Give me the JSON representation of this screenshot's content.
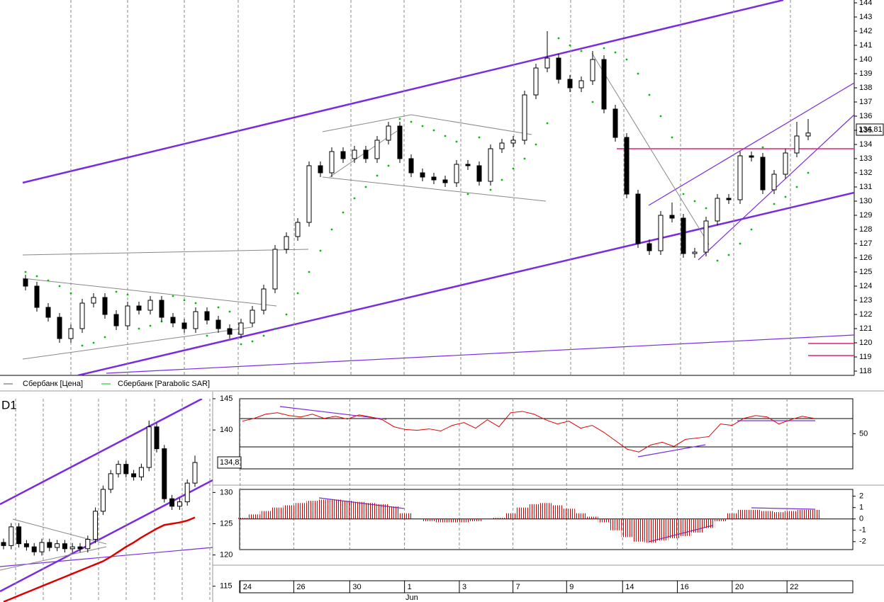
{
  "chart_data": [
    {
      "type": "candlestick",
      "series": [
        {
          "name": "Сбербанк [Цена]",
          "color": "#000000",
          "open": [
            124.5,
            124,
            122.5,
            121.8,
            120.3,
            121,
            122.8,
            123.2,
            122,
            121.2,
            122.6,
            122.3,
            123,
            121.8,
            121.4,
            121,
            122.2,
            121.6,
            121,
            120.6,
            121.4,
            122.3,
            123.8,
            126.6,
            127.5,
            128.5,
            132.5,
            132,
            133.5,
            133,
            133.6,
            133,
            134.3,
            135.3,
            133,
            132,
            131.7,
            131.5,
            131.3,
            132.6,
            132.5,
            131.4,
            133.7,
            134.1,
            134.3,
            137.5,
            139.4,
            140.1,
            138.6,
            138,
            138.5,
            140,
            136.5,
            134.5,
            130.5,
            127,
            126.5,
            129,
            128.8,
            126.3,
            126.4,
            128.6,
            130.2,
            130.1,
            133.2,
            133.1,
            130.8,
            131.9,
            133.4,
            134.6
          ],
          "high": [
            124.8,
            124.3,
            122.8,
            122.1,
            121.3,
            123.1,
            123.5,
            123.5,
            122.3,
            122.9,
            122.9,
            123.3,
            123.3,
            122.1,
            121.7,
            122.5,
            122.5,
            121.9,
            121.3,
            121.7,
            122.6,
            124.1,
            126.9,
            127.8,
            128.8,
            132.8,
            132.8,
            133.8,
            133.8,
            133.9,
            133.9,
            134.6,
            135.6,
            135.6,
            133.3,
            132.3,
            132,
            131.8,
            132.9,
            132.9,
            132.8,
            134,
            134.4,
            134.6,
            137.8,
            139.7,
            142,
            140.4,
            138.9,
            138.8,
            140.6,
            140.3,
            136.8,
            134.8,
            130.8,
            127.3,
            129.3,
            129.9,
            129.1,
            126.7,
            128.9,
            130.5,
            130.5,
            133.5,
            133.5,
            133.4,
            132.2,
            133.7,
            135.6,
            135.8
          ],
          "low": [
            123.7,
            122.2,
            121.5,
            120,
            120,
            120.7,
            122.5,
            121.7,
            120.9,
            120.9,
            122,
            122,
            121.5,
            121.1,
            120.7,
            120.7,
            121.3,
            120.7,
            120.3,
            120.3,
            121.1,
            122,
            123.5,
            126.3,
            127.2,
            128.2,
            131.7,
            131.7,
            132.7,
            132.7,
            132.7,
            132.7,
            134,
            132.7,
            131.7,
            131.4,
            131.2,
            131,
            131,
            132.2,
            131.1,
            131.1,
            133.4,
            133.8,
            134,
            137.2,
            139.1,
            138.3,
            137.7,
            137.7,
            138.2,
            136.2,
            134.2,
            130.2,
            126.7,
            126.2,
            126.2,
            128.5,
            126,
            126,
            126.1,
            128.3,
            129.8,
            129.8,
            132.8,
            130.5,
            130.5,
            131.6,
            133.1,
            134.3
          ],
          "close": [
            124,
            122.5,
            121.8,
            120.3,
            121,
            122.8,
            123.2,
            122,
            121.2,
            122.6,
            122.3,
            123,
            121.8,
            121.4,
            121,
            122.2,
            121.6,
            121,
            120.6,
            121.4,
            122.3,
            123.8,
            126.6,
            127.5,
            128.5,
            132.5,
            132,
            133.5,
            133,
            133.6,
            133,
            134.3,
            135.3,
            133,
            132,
            131.7,
            131.5,
            131.3,
            132.6,
            132.5,
            131.4,
            133.7,
            134.1,
            134.3,
            137.5,
            139.4,
            140.1,
            138.6,
            138,
            138.5,
            140,
            136.5,
            134.5,
            130.5,
            127,
            126.5,
            129,
            128.8,
            126.3,
            126.4,
            128.6,
            130.2,
            130.1,
            133.2,
            133.1,
            130.8,
            131.9,
            133.4,
            134.6,
            134.81
          ]
        },
        {
          "name": "Сбербанк [Parabolic SAR]",
          "color": "#00c000",
          "values": [
            125,
            124.7,
            124.4,
            124,
            123.5,
            119.8,
            120,
            120.4,
            123.6,
            123.4,
            121,
            121.2,
            121.5,
            123.3,
            123,
            122.8,
            120.5,
            122.5,
            122.2,
            119.9,
            120.1,
            120.5,
            121,
            122,
            123.5,
            125,
            126.5,
            128,
            129.2,
            130.2,
            131,
            131.8,
            132.5,
            135.8,
            135.6,
            135.3,
            135,
            134.6,
            134.2,
            130.5,
            134.5,
            130.8,
            131.5,
            132.3,
            133,
            134,
            135.5,
            141.5,
            141,
            140.6,
            137,
            140.8,
            140.5,
            140,
            139,
            137.5,
            136,
            134.5,
            130.5,
            130,
            129.5,
            125.8,
            126.2,
            127,
            128,
            133.8,
            129.8,
            130.3,
            131,
            132
          ]
        }
      ],
      "ylim": [
        117.7,
        144.2
      ],
      "yticks": [
        118,
        119,
        120,
        121,
        122,
        123,
        124,
        125,
        126,
        127,
        128,
        129,
        130,
        131,
        132,
        133,
        134,
        135,
        136,
        137,
        138,
        139,
        140,
        141,
        142,
        143,
        144
      ],
      "last_price_label": "134,81"
    },
    {
      "type": "candlestick",
      "title": "D1",
      "series": [
        {
          "color": "#000000",
          "open": [
            122,
            121.5,
            124.5,
            121.8,
            121.3,
            120.5,
            122,
            121.2,
            121.8,
            121,
            121.3,
            121,
            122.5,
            127,
            130.5,
            133,
            134.5,
            133,
            132.5,
            134,
            140.5,
            137,
            129,
            127.8,
            128.5,
            131.5
          ],
          "high": [
            122.6,
            125.1,
            125.1,
            122.4,
            121.9,
            122.6,
            122.6,
            122.4,
            122.4,
            121.9,
            121.9,
            123.1,
            127.6,
            131.1,
            133.6,
            135.1,
            135.1,
            133.6,
            134.6,
            141.5,
            141.1,
            137.6,
            129.6,
            129.1,
            132.1,
            135.9
          ],
          "low": [
            120.9,
            120.9,
            121.2,
            120.7,
            119.9,
            119.9,
            120.6,
            120.6,
            120.4,
            120.4,
            120.4,
            120.4,
            121.9,
            126.4,
            129.9,
            132.4,
            132.4,
            131.9,
            131.9,
            133.4,
            136.4,
            128.4,
            127.2,
            127.2,
            127.9,
            130.9
          ],
          "close": [
            121.5,
            124.5,
            121.8,
            121.3,
            120.5,
            122,
            121.2,
            121.8,
            121,
            121.3,
            121,
            122.5,
            127,
            130.5,
            133,
            134.5,
            133,
            132.5,
            134,
            140.5,
            137,
            129,
            127.8,
            128.5,
            131.5,
            134.8
          ]
        },
        {
          "color": "#e00000",
          "values": [
            112.5,
            113,
            113.5,
            114,
            114.5,
            115,
            115.5,
            116,
            116.5,
            117,
            117.5,
            118,
            118.5,
            119,
            119.7,
            120.5,
            121.3,
            122,
            122.8,
            123.5,
            124.2,
            124.8,
            125,
            125.2,
            125.5,
            126
          ]
        }
      ],
      "ylim": [
        112.7,
        145
      ],
      "yticks": [
        145,
        140,
        130,
        125,
        120,
        115
      ],
      "last_price_label": "134,8"
    },
    {
      "type": "line",
      "series": [
        {
          "color": "#e00000",
          "values": [
            68,
            72,
            78,
            80,
            76,
            74,
            78,
            72,
            75,
            71,
            77,
            74,
            70,
            60,
            56,
            55,
            57,
            54,
            62,
            66,
            58,
            70,
            60,
            80,
            82,
            78,
            70,
            64,
            68,
            58,
            62,
            52,
            40,
            28,
            24,
            34,
            38,
            32,
            42,
            44,
            46,
            64,
            62,
            72,
            76,
            74,
            64,
            70,
            75,
            72
          ]
        }
      ],
      "xlim": [
        0,
        49
      ],
      "ylim": [
        0,
        100
      ],
      "yticks": [
        50
      ]
    },
    {
      "type": "bar",
      "color": "#d00000",
      "values": [
        0.1,
        0.4,
        0.7,
        1,
        1.2,
        1.4,
        1.6,
        1.7,
        1.7,
        1.6,
        1.5,
        1.4,
        1.3,
        1.1,
        0.5,
        0,
        -0.2,
        -0.3,
        -0.3,
        -0.3,
        -0.2,
        0,
        0.1,
        0.5,
        1,
        1.3,
        1.4,
        1.2,
        0.9,
        0.5,
        0.2,
        -0.3,
        -1,
        -1.6,
        -2,
        -2.1,
        -1.9,
        -1.7,
        -1.5,
        -1.2,
        -0.8,
        -0.2,
        0.5,
        0.8,
        0.8,
        0.7,
        0.6,
        0.7,
        0.8,
        0.8
      ],
      "xlim": [
        0,
        49
      ],
      "ylim": [
        -2.7,
        2.6
      ],
      "yticks": [
        2,
        1,
        0,
        -1,
        -2
      ],
      "xticks": [
        {
          "value": -0.2,
          "label": "24"
        },
        {
          "value": 4.4,
          "label": "26"
        },
        {
          "value": 9.2,
          "label": "30"
        },
        {
          "value": 13.9,
          "label": "1"
        },
        {
          "value": 18.6,
          "label": "3"
        },
        {
          "value": 23.2,
          "label": "7"
        },
        {
          "value": 27.8,
          "label": "9"
        },
        {
          "value": 32.6,
          "label": "14"
        },
        {
          "value": 37.3,
          "label": "16"
        },
        {
          "value": 42,
          "label": "20"
        },
        {
          "value": 46.7,
          "label": "22"
        }
      ],
      "month_label": "Jun"
    }
  ]
}
